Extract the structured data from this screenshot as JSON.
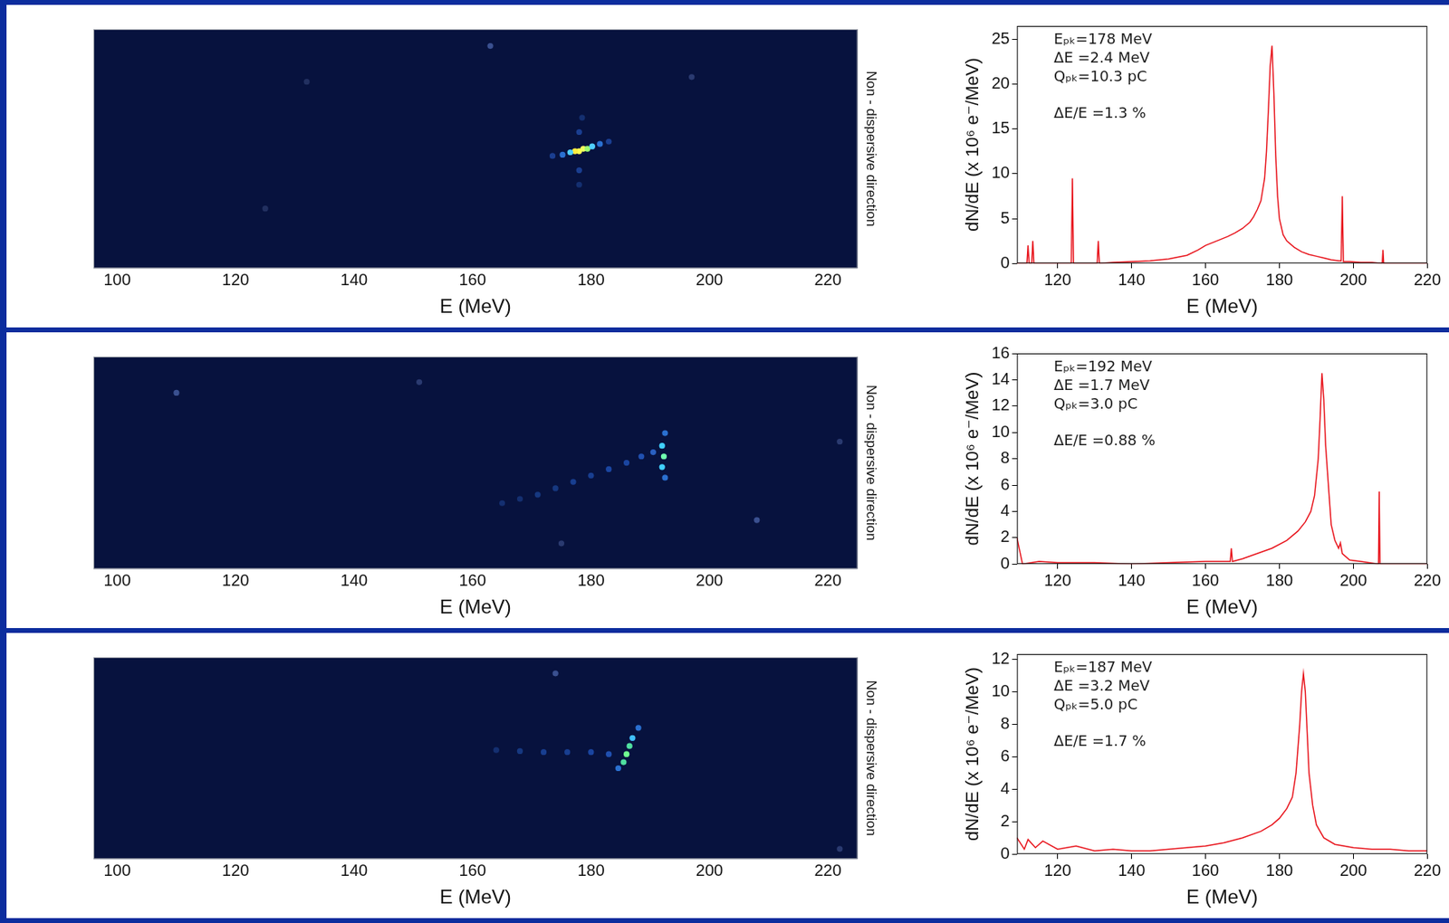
{
  "chart_data": [
    {
      "type": "scatter",
      "xlabel": "E (MeV)",
      "ylabel": "Non - dispersive direction",
      "tick_labels": "x",
      "grid": false,
      "marker": "circle",
      "xlim": [
        96,
        225
      ],
      "xticks": [
        100,
        120,
        140,
        160,
        180,
        200,
        220
      ],
      "ylim": [
        0,
        1
      ],
      "x": [
        178,
        177.3,
        178.7,
        179.4,
        176.5,
        180.2,
        175.2,
        181.5,
        173.5,
        183,
        178,
        178,
        178.5,
        178,
        163,
        197,
        125,
        132
      ],
      "values": [
        0.49,
        0.49,
        0.5,
        0.5,
        0.485,
        0.51,
        0.475,
        0.52,
        0.47,
        0.53,
        0.57,
        0.41,
        0.63,
        0.35,
        0.93,
        0.8,
        0.25,
        0.78
      ],
      "colors": [
        "#ffff50",
        "#ffee40",
        "#f0ff60",
        "#a0ff70",
        "#50d0ff",
        "#50d0ff",
        "#2a70d0",
        "#2a70d0",
        "#1a3e90",
        "#1a3e90",
        "#1a3e90",
        "#1a3e90",
        "#142f70",
        "#142f70",
        "#3a5090",
        "#2a3a70",
        "#223060",
        "#223060"
      ]
    },
    {
      "type": "line",
      "xlabel": "E (MeV)",
      "ylabel": "dN/dE (x 10⁶ e⁻/MeV)",
      "grid": false,
      "color": "#e8141c",
      "xlim": [
        109,
        220
      ],
      "xticks": [
        120,
        140,
        160,
        180,
        200,
        220
      ],
      "ylim": [
        0,
        26.5
      ],
      "yticks": [
        0,
        5,
        10,
        15,
        20,
        25
      ],
      "annotations": [
        "Eₚₖ=178 MeV",
        "ΔE =2.4 MeV",
        "Qₚₖ=10.3 pC",
        "ΔE/E =1.3 %"
      ],
      "x": [
        109,
        111.7,
        112,
        112.3,
        113,
        113.3,
        113.6,
        118,
        123.7,
        124,
        124.3,
        130.7,
        131,
        131.3,
        135,
        140,
        145,
        150,
        155,
        158,
        160,
        163,
        166,
        168,
        170,
        172,
        173,
        174,
        175,
        176,
        176.5,
        177,
        177.5,
        178,
        178.5,
        179,
        179.5,
        180,
        181,
        182,
        184,
        186,
        188,
        190,
        192,
        194,
        196,
        196.7,
        197,
        197.3,
        199,
        202,
        205,
        207.8,
        208,
        208.2,
        212,
        216,
        220
      ],
      "values": [
        0,
        0,
        2,
        0,
        0,
        2.5,
        0,
        0,
        0,
        9.5,
        0,
        0,
        2.5,
        0,
        0.1,
        0.2,
        0.3,
        0.5,
        0.9,
        1.5,
        2.0,
        2.5,
        3.0,
        3.4,
        3.9,
        4.6,
        5.2,
        6.0,
        7.0,
        9.5,
        12.5,
        17,
        22,
        24.3,
        19,
        12,
        7.5,
        5,
        3.2,
        2.5,
        1.8,
        1.3,
        1.0,
        0.8,
        0.6,
        0.4,
        0.3,
        0.3,
        7.5,
        0.2,
        0.2,
        0.1,
        0.1,
        0,
        1.5,
        0,
        0,
        0,
        0
      ]
    },
    {
      "type": "scatter",
      "xlabel": "E (MeV)",
      "ylabel": "Non - dispersive direction",
      "tick_labels": "x",
      "grid": false,
      "marker": "circle",
      "xlim": [
        96,
        225
      ],
      "xticks": [
        100,
        120,
        140,
        160,
        180,
        200,
        220
      ],
      "ylim": [
        0,
        1
      ],
      "x": [
        192.3,
        192,
        192,
        192.5,
        192.5,
        190.5,
        188.5,
        186,
        183,
        180,
        177,
        174,
        171,
        168,
        165,
        110,
        208,
        222,
        175,
        151
      ],
      "values": [
        0.53,
        0.58,
        0.48,
        0.64,
        0.43,
        0.55,
        0.53,
        0.5,
        0.47,
        0.44,
        0.41,
        0.38,
        0.35,
        0.33,
        0.31,
        0.83,
        0.23,
        0.6,
        0.12,
        0.88
      ],
      "colors": [
        "#70ffb0",
        "#40d0ff",
        "#40d0ff",
        "#2a70d0",
        "#2a70d0",
        "#2a60c0",
        "#2050b0",
        "#1a45a0",
        "#1a45a0",
        "#183e90",
        "#183e90",
        "#163880",
        "#163880",
        "#142f70",
        "#142f70",
        "#3a5090",
        "#3a5090",
        "#2a3a70",
        "#2a3a70",
        "#2a3a70"
      ]
    },
    {
      "type": "line",
      "xlabel": "E (MeV)",
      "ylabel": "dN/dE (x 10⁶ e⁻/MeV)",
      "grid": false,
      "color": "#e8141c",
      "xlim": [
        109,
        220
      ],
      "xticks": [
        120,
        140,
        160,
        180,
        200,
        220
      ],
      "ylim": [
        0,
        16
      ],
      "yticks": [
        0,
        2,
        4,
        6,
        8,
        10,
        12,
        14,
        16
      ],
      "annotations": [
        "Eₚₖ=192 MeV",
        "ΔE =1.7 MeV",
        "Qₚₖ=3.0 pC",
        "ΔE/E =0.88 %"
      ],
      "x": [
        109,
        110.5,
        115,
        120,
        130,
        140,
        150,
        160,
        166.7,
        167,
        167.3,
        170,
        174,
        178,
        182,
        185,
        187,
        188.5,
        189.5,
        190.5,
        191,
        191.5,
        192,
        192.5,
        193,
        193.5,
        194,
        195,
        196,
        196.5,
        197,
        199,
        202,
        206.8,
        207,
        207.2,
        210,
        215,
        220
      ],
      "values": [
        2,
        0,
        0.2,
        0.1,
        0.1,
        0,
        0.1,
        0.2,
        0.2,
        1.2,
        0.2,
        0.4,
        0.8,
        1.2,
        1.8,
        2.5,
        3.2,
        4,
        5.2,
        8,
        11,
        14.5,
        12.5,
        9,
        7,
        5,
        3,
        1.8,
        1.2,
        1.6,
        0.8,
        0.3,
        0.2,
        0,
        5.5,
        0,
        0,
        0,
        0
      ]
    },
    {
      "type": "scatter",
      "xlabel": "E (MeV)",
      "ylabel": "Non - dispersive direction",
      "tick_labels": "x",
      "grid": false,
      "marker": "circle",
      "xlim": [
        96,
        225
      ],
      "xticks": [
        100,
        120,
        140,
        160,
        180,
        200,
        220
      ],
      "ylim": [
        0,
        1
      ],
      "x": [
        186,
        185.5,
        186.5,
        187,
        188,
        184.6,
        183,
        180,
        176,
        172,
        168,
        164,
        174,
        222
      ],
      "values": [
        0.52,
        0.48,
        0.56,
        0.6,
        0.65,
        0.45,
        0.52,
        0.53,
        0.53,
        0.53,
        0.535,
        0.54,
        0.92,
        0.05
      ],
      "colors": [
        "#70ff90",
        "#50e0a0",
        "#50e0a0",
        "#40c0ff",
        "#2a70d0",
        "#2a70d0",
        "#2050b0",
        "#1a45a0",
        "#183e90",
        "#183e90",
        "#163880",
        "#142f70",
        "#3a5090",
        "#2a3a70"
      ]
    },
    {
      "type": "line",
      "xlabel": "E (MeV)",
      "ylabel": "dN/dE (x 10⁶ e⁻/MeV)",
      "grid": false,
      "color": "#e8141c",
      "xlim": [
        109,
        220
      ],
      "xticks": [
        120,
        140,
        160,
        180,
        200,
        220
      ],
      "ylim": [
        0,
        12.3
      ],
      "yticks": [
        0,
        2,
        4,
        6,
        8,
        10,
        12
      ],
      "annotations": [
        "Eₚₖ=187 MeV",
        "ΔE =3.2 MeV",
        "Qₚₖ=5.0 pC",
        "ΔE/E =1.7 %"
      ],
      "x": [
        109,
        111,
        112,
        114,
        116,
        120,
        125,
        130,
        135,
        140,
        145,
        150,
        155,
        160,
        165,
        170,
        175,
        178,
        180,
        182,
        183.5,
        184.5,
        185.5,
        186,
        186.5,
        187,
        187.5,
        188,
        189,
        190,
        192,
        195,
        200,
        205,
        210,
        215,
        220
      ],
      "values": [
        1,
        0.3,
        0.9,
        0.4,
        0.8,
        0.3,
        0.5,
        0.2,
        0.3,
        0.2,
        0.2,
        0.3,
        0.4,
        0.5,
        0.7,
        1.0,
        1.4,
        1.8,
        2.2,
        2.8,
        3.5,
        5,
        8,
        10,
        11.1,
        10,
        7.5,
        5,
        3,
        1.8,
        1.0,
        0.6,
        0.4,
        0.3,
        0.3,
        0.2,
        0.2
      ]
    }
  ]
}
